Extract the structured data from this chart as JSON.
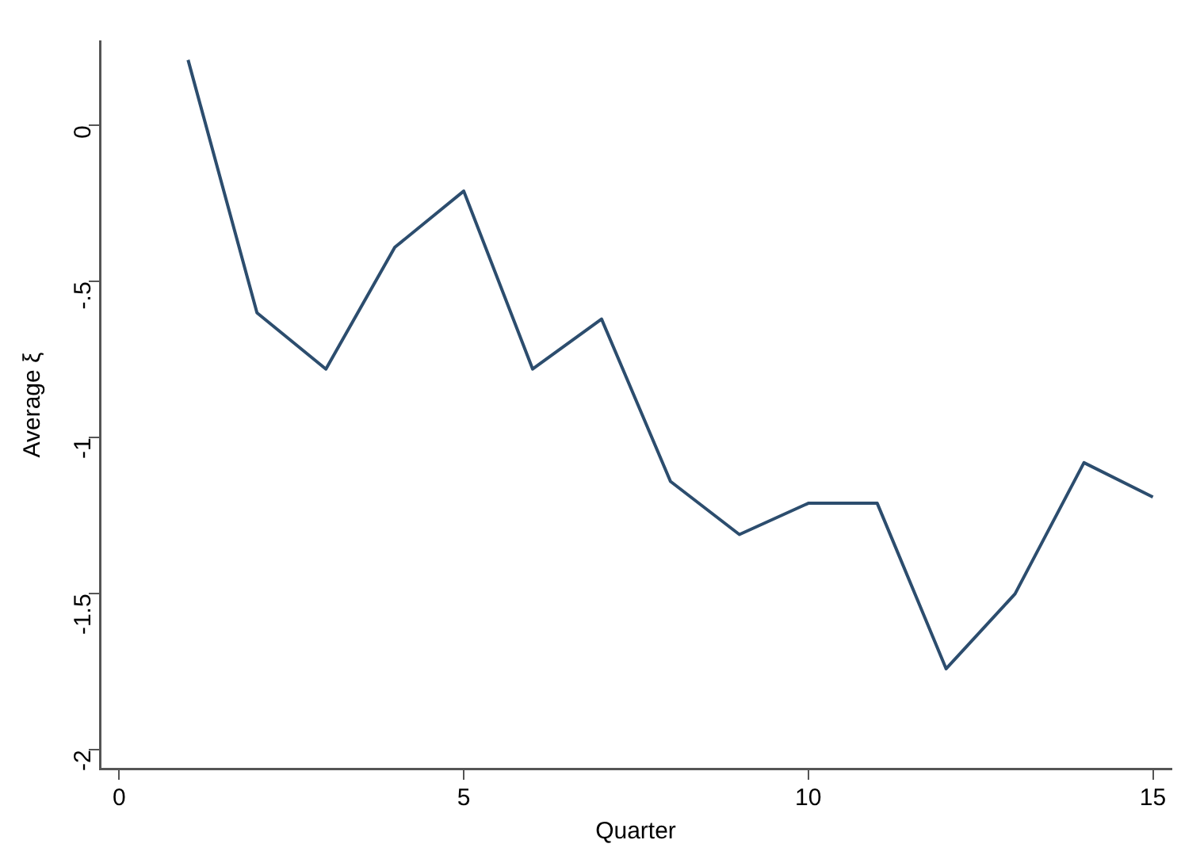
{
  "chart_data": {
    "type": "line",
    "xlabel": "Quarter",
    "ylabel": "Average ξ",
    "x": [
      1,
      2,
      3,
      4,
      5,
      6,
      7,
      8,
      9,
      10,
      11,
      12,
      13,
      14,
      15
    ],
    "series": [
      {
        "color": "#2c4d6e",
        "values": [
          0.21,
          -0.6,
          -0.78,
          -0.39,
          -0.21,
          -0.78,
          -0.62,
          -1.14,
          -1.31,
          -1.21,
          -1.21,
          -1.74,
          -1.5,
          -1.08,
          -1.19
        ]
      }
    ],
    "xlim": [
      -0.28,
      15.27
    ],
    "xticks": [
      0,
      5,
      10,
      15
    ],
    "ylim": [
      -2.06,
      0.27
    ],
    "yticks": [
      {
        "value": 0,
        "label": "0"
      },
      {
        "value": -0.5,
        "label": "-.5"
      },
      {
        "value": -1,
        "label": "-1"
      },
      {
        "value": -1.5,
        "label": "-1.5"
      },
      {
        "value": -2,
        "label": "-2"
      }
    ],
    "grid": false,
    "legend": false,
    "marker": "none",
    "line_style": "solid"
  }
}
